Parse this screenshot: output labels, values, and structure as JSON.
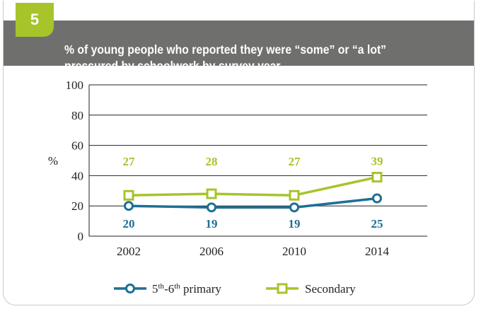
{
  "figure": {
    "number": "5",
    "title_lines": [
      "% of young people who reported they were “some” or “a lot”",
      "pressured by schoolwork by survey year"
    ]
  },
  "colors": {
    "header_bg": "#6f706e",
    "badge_bg": "#a7c42b",
    "primary": "#1d6f95",
    "secondary": "#a7c42b",
    "grid": "#222222"
  },
  "chart_data": {
    "type": "line",
    "categories": [
      "2002",
      "2006",
      "2010",
      "2014"
    ],
    "ylabel": "%",
    "ylim": [
      0,
      100
    ],
    "yticks": [
      0,
      20,
      40,
      60,
      80,
      100
    ],
    "grid": true,
    "legend_position": "bottom",
    "series": [
      {
        "name": "5th-6th primary",
        "name_parts": [
          "5",
          "th",
          "-6",
          "th",
          " primary"
        ],
        "values": [
          20,
          19,
          19,
          25
        ],
        "labels": [
          "20",
          "19",
          "19",
          "25"
        ],
        "marker": "circle",
        "color": "#1d6f95"
      },
      {
        "name": "Secondary",
        "values": [
          27,
          28,
          27,
          39
        ],
        "labels": [
          "27",
          "28",
          "27",
          "39"
        ],
        "marker": "square",
        "color": "#a7c42b"
      }
    ]
  }
}
